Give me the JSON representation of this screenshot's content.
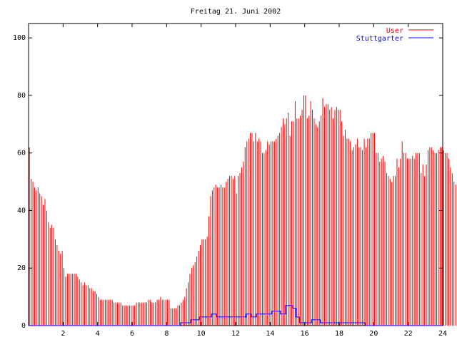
{
  "chart_data": {
    "type": "bar",
    "title": "Freitag 21. Juni 2002",
    "xlabel": "",
    "ylabel": "",
    "xlim": [
      0,
      24
    ],
    "ylim": [
      0,
      105
    ],
    "x_ticks": [
      2,
      4,
      6,
      8,
      10,
      12,
      14,
      16,
      18,
      20,
      22,
      24
    ],
    "x_tick_labels": [
      "2",
      "4",
      "6",
      "8",
      "10",
      "12",
      "14",
      "16",
      "18",
      "20",
      "22",
      "24"
    ],
    "y_ticks": [
      0,
      20,
      40,
      60,
      80,
      100
    ],
    "y_tick_labels": [
      "0",
      "20",
      "40",
      "60",
      "80",
      "100"
    ],
    "grid": false,
    "legend_position": "top-right",
    "interval_hours": 0.1,
    "series": [
      {
        "name": "User",
        "color": "#ff0000",
        "style": "impulses",
        "values": [
          62,
          51,
          50,
          48,
          47,
          48,
          46,
          45,
          42,
          44,
          40,
          36,
          34,
          35,
          34,
          30,
          28,
          26,
          25,
          26,
          20,
          17,
          18,
          18,
          18,
          18,
          18,
          18,
          17,
          16,
          15,
          14,
          15,
          14,
          14,
          13,
          13,
          12,
          12,
          11,
          10,
          9,
          9,
          9,
          9,
          9,
          9,
          9,
          9,
          8,
          8,
          8,
          8,
          8,
          7,
          7,
          7,
          7,
          7,
          7,
          7,
          7,
          8,
          8,
          8,
          8,
          8,
          8,
          8,
          9,
          9,
          8,
          8,
          8,
          9,
          9,
          10,
          9,
          9,
          9,
          9,
          9,
          6,
          6,
          6,
          6,
          7,
          7,
          8,
          9,
          10,
          13,
          15,
          18,
          20,
          21,
          22,
          24,
          26,
          28,
          30,
          30,
          30,
          31,
          38,
          45,
          47,
          48,
          49,
          48,
          48,
          49,
          48,
          48,
          50,
          51,
          52,
          52,
          51,
          52,
          46,
          52,
          53,
          55,
          57,
          62,
          64,
          65,
          67,
          67,
          64,
          67,
          64,
          65,
          64,
          60,
          60,
          61,
          64,
          63,
          64,
          64,
          64,
          65,
          66,
          67,
          69,
          72,
          70,
          72,
          74,
          66,
          71,
          71,
          78,
          72,
          72,
          73,
          75,
          80,
          80,
          72,
          73,
          78,
          75,
          72,
          70,
          69,
          71,
          73,
          79,
          76,
          77,
          77,
          75,
          76,
          72,
          75,
          76,
          75,
          75,
          71,
          66,
          68,
          65,
          65,
          64,
          61,
          62,
          63,
          65,
          62,
          62,
          61,
          65,
          62,
          65,
          65,
          67,
          67,
          67,
          60,
          60,
          57,
          58,
          59,
          57,
          53,
          52,
          51,
          50,
          52,
          52,
          58,
          55,
          58,
          64,
          60,
          60,
          58,
          58,
          58,
          59,
          58,
          60,
          60,
          60,
          53,
          56,
          52,
          56,
          61,
          62,
          62,
          61,
          60,
          60,
          61,
          62,
          62,
          61,
          60,
          60,
          58,
          55,
          53,
          50,
          49,
          50
        ]
      },
      {
        "name": "Stuttgarter",
        "color": "#0000ff",
        "style": "steps",
        "points": [
          [
            0,
            0
          ],
          [
            8.8,
            0
          ],
          [
            8.8,
            1
          ],
          [
            9.4,
            1
          ],
          [
            9.4,
            2
          ],
          [
            9.9,
            2
          ],
          [
            9.9,
            3
          ],
          [
            10.6,
            3
          ],
          [
            10.6,
            4
          ],
          [
            10.9,
            4
          ],
          [
            10.9,
            3
          ],
          [
            12.6,
            3
          ],
          [
            12.6,
            4
          ],
          [
            12.9,
            4
          ],
          [
            12.9,
            3
          ],
          [
            13.2,
            3
          ],
          [
            13.2,
            4
          ],
          [
            14.1,
            4
          ],
          [
            14.1,
            5
          ],
          [
            14.6,
            5
          ],
          [
            14.6,
            4
          ],
          [
            14.9,
            4
          ],
          [
            14.9,
            7
          ],
          [
            15.3,
            7
          ],
          [
            15.3,
            6
          ],
          [
            15.5,
            6
          ],
          [
            15.5,
            3
          ],
          [
            15.7,
            3
          ],
          [
            15.7,
            1
          ],
          [
            16.4,
            1
          ],
          [
            16.4,
            2
          ],
          [
            16.9,
            2
          ],
          [
            16.9,
            1
          ],
          [
            19.5,
            1
          ],
          [
            19.5,
            0
          ],
          [
            24,
            0
          ]
        ]
      }
    ]
  }
}
